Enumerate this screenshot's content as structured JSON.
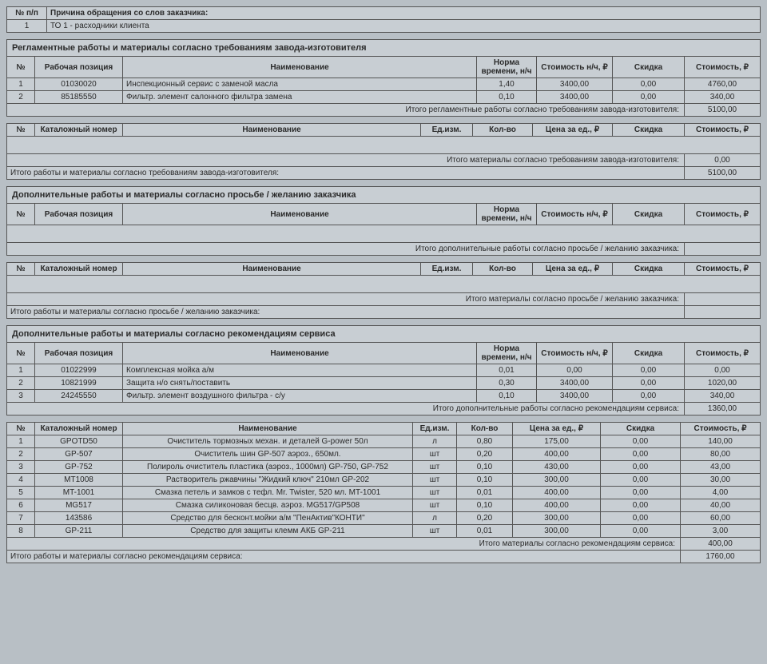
{
  "reason": {
    "col_num": "№ п/п",
    "col_reason": "Причина обращения со слов заказчика:",
    "row_num": "1",
    "row_text": "ТО 1 - расходники клиента"
  },
  "section1": {
    "title": "Регламентные работы и материалы согласно требованиям завода-изготовителя",
    "work_headers": {
      "num": "№",
      "pos": "Рабочая позиция",
      "name": "Наименование",
      "norm": "Норма времени, н/ч",
      "rate": "Стоимость н/ч, ₽",
      "disc": "Скидка",
      "cost": "Стоимость, ₽"
    },
    "work_rows": [
      {
        "n": "1",
        "pos": "01030020",
        "name": "Инспекционный сервис с заменой масла",
        "norm": "1,40",
        "rate": "3400,00",
        "disc": "0,00",
        "cost": "4760,00"
      },
      {
        "n": "2",
        "pos": "85185550",
        "name": "Фильтр. элемент салонного фильтра замена",
        "norm": "0,10",
        "rate": "3400,00",
        "disc": "0,00",
        "cost": "340,00"
      }
    ],
    "work_total_label": "Итого регламентные работы согласно требованиям завода-изготовителя:",
    "work_total": "5100,00",
    "mat_headers": {
      "num": "№",
      "cat": "Каталожный номер",
      "name": "Наименование",
      "unit": "Ед.изм.",
      "qty": "Кол-во",
      "price": "Цена за ед., ₽",
      "disc": "Скидка",
      "cost": "Стоимость, ₽"
    },
    "mat_total_label": "Итого материалы согласно требованиям завода-изготовителя:",
    "mat_total": "0,00",
    "combined_label": "Итого работы и материалы согласно требованиям завода-изготовителя:",
    "combined_total": "5100,00"
  },
  "section2": {
    "title": "Дополнительные работы и материалы согласно просьбе / желанию заказчика",
    "work_headers": {
      "num": "№",
      "pos": "Рабочая позиция",
      "name": "Наименование",
      "norm": "Норма времени, н/ч",
      "rate": "Стоимость н/ч, ₽",
      "disc": "Скидка",
      "cost": "Стоимость, ₽"
    },
    "work_total_label": "Итого дополнительные работы согласно просьбе / желанию заказчика:",
    "mat_headers": {
      "num": "№",
      "cat": "Каталожный номер",
      "name": "Наименование",
      "unit": "Ед.изм.",
      "qty": "Кол-во",
      "price": "Цена за ед., ₽",
      "disc": "Скидка",
      "cost": "Стоимость, ₽"
    },
    "mat_total_label": "Итого материалы согласно просьбе / желанию заказчика:",
    "combined_label": "Итого работы и материалы согласно просьбе / желанию заказчика:"
  },
  "section3": {
    "title": "Дополнительные работы и материалы согласно рекомендациям сервиса",
    "work_headers": {
      "num": "№",
      "pos": "Рабочая позиция",
      "name": "Наименование",
      "norm": "Норма времени, н/ч",
      "rate": "Стоимость н/ч, ₽",
      "disc": "Скидка",
      "cost": "Стоимость, ₽"
    },
    "work_rows": [
      {
        "n": "1",
        "pos": "01022999",
        "name": "Комплексная мойка а/м",
        "norm": "0,01",
        "rate": "0,00",
        "disc": "0,00",
        "cost": "0,00"
      },
      {
        "n": "2",
        "pos": "10821999",
        "name": "Защита н/о снять/поставить",
        "norm": "0,30",
        "rate": "3400,00",
        "disc": "0,00",
        "cost": "1020,00"
      },
      {
        "n": "3",
        "pos": "24245550",
        "name": "Фильтр. элемент воздушного фильтра - с/у",
        "norm": "0,10",
        "rate": "3400,00",
        "disc": "0,00",
        "cost": "340,00"
      }
    ],
    "work_total_label": "Итого дополнительные работы согласно рекомендациям сервиса:",
    "work_total": "1360,00",
    "mat_headers": {
      "num": "№",
      "cat": "Каталожный номер",
      "name": "Наименование",
      "unit": "Ед.изм.",
      "qty": "Кол-во",
      "price": "Цена за ед., ₽",
      "disc": "Скидка",
      "cost": "Стоимость, ₽"
    },
    "mat_rows": [
      {
        "n": "1",
        "cat": "GPOTD50",
        "name": "Очиститель тормозных механ. и деталей G-power 50л",
        "unit": "л",
        "qty": "0,80",
        "price": "175,00",
        "disc": "0,00",
        "cost": "140,00"
      },
      {
        "n": "2",
        "cat": "GP-507",
        "name": "Очиститель шин GP-507 аэроз., 650мл.",
        "unit": "шт",
        "qty": "0,20",
        "price": "400,00",
        "disc": "0,00",
        "cost": "80,00"
      },
      {
        "n": "3",
        "cat": "GP-752",
        "name": "Полироль очиститель пластика (аэроз., 1000мл) GP-750, GP-752",
        "unit": "шт",
        "qty": "0,10",
        "price": "430,00",
        "disc": "0,00",
        "cost": "43,00"
      },
      {
        "n": "4",
        "cat": "MT1008",
        "name": "Растворитель ржавчины \"Жидкий ключ\" 210мл GP-202",
        "unit": "шт",
        "qty": "0,10",
        "price": "300,00",
        "disc": "0,00",
        "cost": "30,00"
      },
      {
        "n": "5",
        "cat": "MT-1001",
        "name": "Смазка петель и замков с тефл. Mr. Twister, 520 мл. MT-1001",
        "unit": "шт",
        "qty": "0,01",
        "price": "400,00",
        "disc": "0,00",
        "cost": "4,00"
      },
      {
        "n": "6",
        "cat": "MG517",
        "name": "Смазка силиконовая бесцв. аэроз. MG517/GP508",
        "unit": "шт",
        "qty": "0,10",
        "price": "400,00",
        "disc": "0,00",
        "cost": "40,00"
      },
      {
        "n": "7",
        "cat": "143586",
        "name": "Средство для бесконт.мойки а/м \"ПенАктив\"КОНТИ\"",
        "unit": "л",
        "qty": "0,20",
        "price": "300,00",
        "disc": "0,00",
        "cost": "60,00"
      },
      {
        "n": "8",
        "cat": "GP-211",
        "name": "Средство для защиты клемм АКБ GP-211",
        "unit": "шт",
        "qty": "0,01",
        "price": "300,00",
        "disc": "0,00",
        "cost": "3,00"
      }
    ],
    "mat_total_label": "Итого материалы согласно рекомендациям сервиса:",
    "mat_total": "400,00",
    "combined_label": "Итого работы и материалы согласно рекомендациям сервиса:",
    "combined_total": "1760,00"
  }
}
